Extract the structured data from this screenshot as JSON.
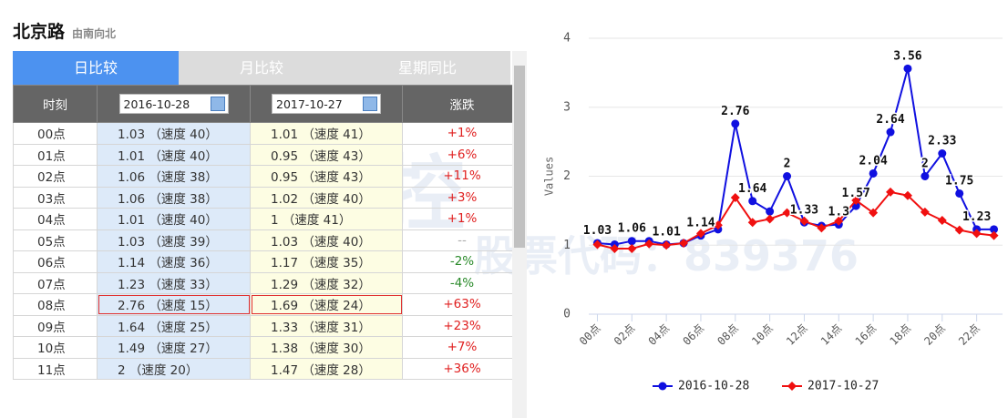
{
  "header": {
    "title": "北京路",
    "subtitle": "由南向北"
  },
  "tabs": [
    "日比较",
    "月比较",
    "星期同比"
  ],
  "table": {
    "headers": [
      "时刻",
      "2016-10-28",
      "2017-10-27",
      "涨跌"
    ],
    "rows": [
      [
        "00点",
        "1.03 （速度 40）",
        "1.01 （速度 41）",
        "+1%"
      ],
      [
        "01点",
        "1.01 （速度 40）",
        "0.95 （速度 43）",
        "+6%"
      ],
      [
        "02点",
        "1.06 （速度 38）",
        "0.95 （速度 43）",
        "+11%"
      ],
      [
        "03点",
        "1.06 （速度 38）",
        "1.02 （速度 40）",
        "+3%"
      ],
      [
        "04点",
        "1.01 （速度 40）",
        "1 （速度 41）",
        "+1%"
      ],
      [
        "05点",
        "1.03 （速度 39）",
        "1.03 （速度 40）",
        "--"
      ],
      [
        "06点",
        "1.14 （速度 36）",
        "1.17 （速度 35）",
        "-2%"
      ],
      [
        "07点",
        "1.23 （速度 33）",
        "1.29 （速度 32）",
        "-4%"
      ],
      [
        "08点",
        "2.76 （速度 15）",
        "1.69 （速度 24）",
        "+63%"
      ],
      [
        "09点",
        "1.64 （速度 25）",
        "1.33 （速度 31）",
        "+23%"
      ],
      [
        "10点",
        "1.49 （速度 27）",
        "1.38 （速度 30）",
        "+7%"
      ],
      [
        "11点",
        "2 （速度 20）",
        "1.47 （速度 28）",
        "+36%"
      ]
    ]
  },
  "watermark": [
    "振业优控",
    "股票代码：839376"
  ],
  "chart_data": {
    "type": "line",
    "y_label": "Values",
    "categories": [
      "00点",
      null,
      "02点",
      null,
      "04点",
      null,
      "06点",
      null,
      "08点",
      null,
      "10点",
      null,
      "12点",
      null,
      "14点",
      null,
      "16点",
      null,
      "18点",
      null,
      "20点",
      null,
      "22点",
      null
    ],
    "series": [
      {
        "name": "2016-10-28",
        "color": "#1010e0",
        "marker": "circle",
        "values": [
          1.03,
          1.01,
          1.06,
          1.06,
          1.01,
          1.03,
          1.14,
          1.23,
          2.76,
          1.64,
          1.49,
          2,
          1.33,
          1.28,
          1.3,
          1.57,
          2.04,
          2.64,
          3.56,
          2,
          2.33,
          1.75,
          1.23,
          1.23
        ],
        "data_labels": true
      },
      {
        "name": "2017-10-27",
        "color": "#f01010",
        "marker": "diamond",
        "values": [
          1.01,
          0.95,
          0.95,
          1.02,
          1,
          1.03,
          1.17,
          1.29,
          1.69,
          1.33,
          1.38,
          1.47,
          1.35,
          1.25,
          1.35,
          1.65,
          1.47,
          1.77,
          1.72,
          1.48,
          1.36,
          1.22,
          1.17,
          1.14
        ],
        "data_labels": false
      }
    ],
    "ylim": [
      0,
      4
    ],
    "yticks": [
      0,
      1,
      2,
      3,
      4
    ],
    "grid": true,
    "legend": "bottom"
  }
}
